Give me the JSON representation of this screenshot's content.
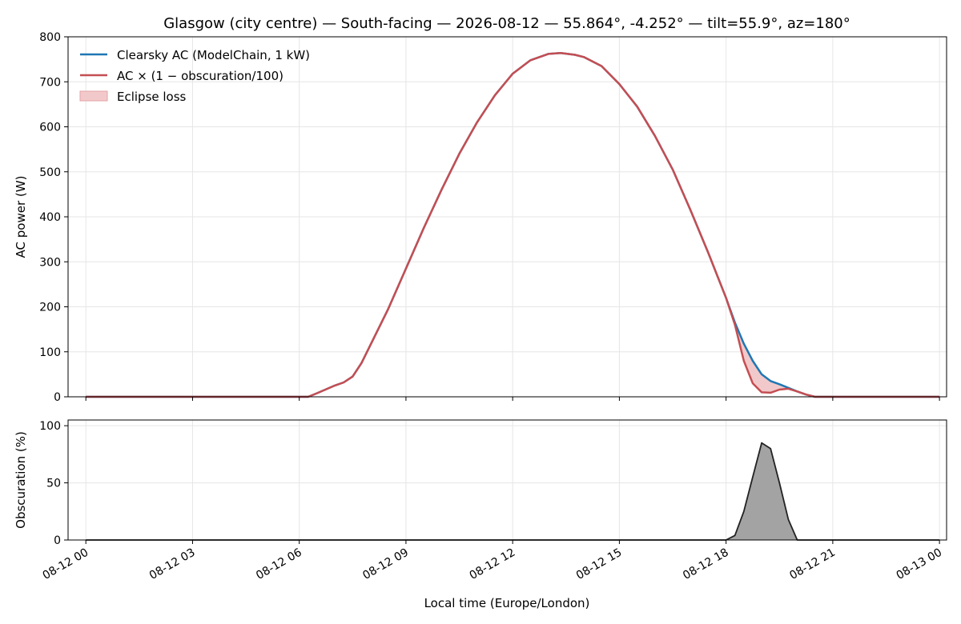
{
  "chart_data": [
    {
      "type": "line",
      "title": "Glasgow (city centre) — South-facing — 2026-08-12 — 55.864°, -4.252° — tilt=55.9°, az=180°",
      "xlabel": "",
      "ylabel": "AC power (W)",
      "xlim": [
        -0.5,
        24.2
      ],
      "ylim": [
        0,
        800
      ],
      "yticks": [
        0,
        100,
        200,
        300,
        400,
        500,
        600,
        700,
        800
      ],
      "grid": true,
      "legend_position": "top-left",
      "colors": {
        "clearsky": "#1f77b4",
        "eclipse": "#c44e52",
        "loss_fill": "#f2c9ca"
      },
      "series": [
        {
          "name": "Clearsky AC (ModelChain, 1 kW)",
          "x": [
            0,
            1,
            2,
            3,
            4,
            5,
            6,
            6.25,
            6.5,
            7,
            7.25,
            7.5,
            7.75,
            8,
            8.5,
            9,
            9.5,
            10,
            10.5,
            11,
            11.5,
            12,
            12.5,
            13,
            13.35,
            13.75,
            14,
            14.5,
            15,
            15.5,
            16,
            16.5,
            17,
            17.5,
            18,
            18.25,
            18.5,
            18.75,
            19,
            19.25,
            19.5,
            19.75,
            20,
            20.25,
            20.5,
            20.75,
            21,
            22,
            23,
            24
          ],
          "values": [
            0,
            0,
            0,
            0,
            0,
            0,
            0,
            0,
            8,
            25,
            32,
            45,
            75,
            115,
            195,
            285,
            375,
            460,
            540,
            610,
            670,
            718,
            748,
            762,
            764,
            760,
            755,
            735,
            695,
            645,
            580,
            505,
            415,
            320,
            220,
            165,
            118,
            80,
            50,
            35,
            28,
            20,
            12,
            5,
            0,
            0,
            0,
            0,
            0,
            0
          ]
        },
        {
          "name": "AC × (1 − obscuration/100)",
          "x": [
            0,
            1,
            2,
            3,
            4,
            5,
            6,
            6.25,
            6.5,
            7,
            7.25,
            7.5,
            7.75,
            8,
            8.5,
            9,
            9.5,
            10,
            10.5,
            11,
            11.5,
            12,
            12.5,
            13,
            13.35,
            13.75,
            14,
            14.5,
            15,
            15.5,
            16,
            16.5,
            17,
            17.5,
            18,
            18.25,
            18.5,
            18.75,
            19,
            19.25,
            19.5,
            19.75,
            20,
            20.25,
            20.5,
            20.75,
            21,
            22,
            23,
            24
          ],
          "values": [
            0,
            0,
            0,
            0,
            0,
            0,
            0,
            0,
            8,
            25,
            32,
            45,
            75,
            115,
            195,
            285,
            375,
            460,
            540,
            610,
            670,
            718,
            748,
            762,
            764,
            760,
            755,
            735,
            695,
            645,
            580,
            505,
            415,
            320,
            220,
            160,
            80,
            30,
            10,
            9,
            16,
            18,
            12,
            5,
            0,
            0,
            0,
            0,
            0,
            0
          ]
        }
      ],
      "fill_between": {
        "name": "Eclipse loss",
        "between": [
          "Clearsky AC (ModelChain, 1 kW)",
          "AC × (1 − obscuration/100)"
        ]
      }
    },
    {
      "type": "area",
      "xlabel": "Local time (Europe/London)",
      "ylabel": "Obscuration (%)",
      "xlim": [
        -0.5,
        24.2
      ],
      "ylim": [
        0,
        105
      ],
      "yticks": [
        0,
        50,
        100
      ],
      "grid": true,
      "x_ticks": [
        0,
        3,
        6,
        9,
        12,
        15,
        18,
        21,
        24
      ],
      "x_tick_labels": [
        "08-12 00",
        "08-12 03",
        "08-12 06",
        "08-12 09",
        "08-12 12",
        "08-12 15",
        "08-12 18",
        "08-12 21",
        "08-13 00"
      ],
      "colors": {
        "line": "#222222",
        "fill": "#a3a3a3"
      },
      "series": [
        {
          "x": [
            0,
            6,
            12,
            18,
            18.25,
            18.5,
            18.75,
            19,
            19.25,
            19.5,
            19.75,
            20,
            20.5,
            24
          ],
          "values": [
            0,
            0,
            0,
            0,
            4,
            25,
            55,
            85,
            80,
            50,
            18,
            0,
            0,
            0
          ]
        }
      ]
    }
  ]
}
